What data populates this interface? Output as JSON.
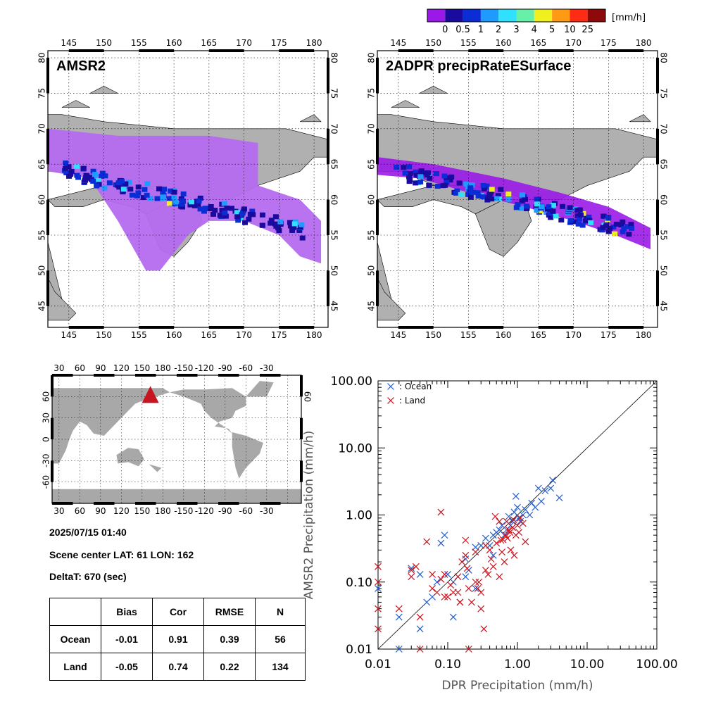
{
  "colorbar": {
    "unit": "[mm/h]",
    "labels": [
      "0",
      "0.5",
      "1",
      "2",
      "3",
      "4",
      "5",
      "10",
      "25"
    ],
    "colors": [
      "#9b19e8",
      "#1a0a9e",
      "#0a2dd6",
      "#1f9bff",
      "#2fe0ff",
      "#66f0a8",
      "#f0f01e",
      "#ff9a14",
      "#ff2b14",
      "#8e0a0a"
    ]
  },
  "maps": {
    "lon_ticks": [
      "145",
      "150",
      "155",
      "160",
      "165",
      "170",
      "175",
      "180"
    ],
    "lat_ticks": [
      "45",
      "50",
      "55",
      "60",
      "65",
      "70",
      "75",
      "80"
    ],
    "left_title": "AMSR2",
    "right_title": "2ADPR precipRateESurface",
    "land_color": "#b0b0b0",
    "ocean_color": "#ffffff",
    "light_rain_color": "#b56cf0"
  },
  "world_map": {
    "lon_ticks": [
      "30",
      "60",
      "90",
      "120",
      "150",
      "180",
      "-150",
      "-120",
      "-90",
      "-60",
      "-30"
    ],
    "lat_ticks": [
      "60",
      "30",
      "0",
      "-30",
      "-60"
    ],
    "right_lat_ticks": [
      "60"
    ],
    "marker_color": "#c8141e"
  },
  "info": {
    "datetime": "2025/07/15 01:40",
    "scene_center": "Scene center LAT: 61   LON: 162",
    "delta_t": "DeltaT:  670 (sec)"
  },
  "stats_table": {
    "headers": [
      "",
      "Bias",
      "Cor",
      "RMSE",
      "N"
    ],
    "rows": [
      [
        "Ocean",
        "-0.01",
        "0.91",
        "0.39",
        "56"
      ],
      [
        "Land",
        "-0.05",
        "0.74",
        "0.22",
        "134"
      ]
    ]
  },
  "chart_data": {
    "type": "scatter",
    "xlabel": "DPR Precipitation (mm/h)",
    "ylabel": "AMSR2 Precipitation (mm/h)",
    "x_scale": "log",
    "y_scale": "log",
    "xlim": [
      0.01,
      100
    ],
    "ylim": [
      0.01,
      100
    ],
    "x_ticks": [
      "0.01",
      "0.10",
      "1.00",
      "10.00",
      "100.00"
    ],
    "y_ticks": [
      "0.01",
      "0.10",
      "1.00",
      "10.00",
      "100.00"
    ],
    "one_to_one_line": true,
    "legend_position": "top-left",
    "series": [
      {
        "name": ": Ocean",
        "color": "#1f5fd6",
        "marker": "x",
        "points": [
          [
            0.01,
            0.08
          ],
          [
            0.02,
            0.03
          ],
          [
            0.03,
            0.16
          ],
          [
            0.04,
            0.13
          ],
          [
            0.05,
            0.05
          ],
          [
            0.06,
            0.06
          ],
          [
            0.07,
            0.1
          ],
          [
            0.08,
            0.38
          ],
          [
            0.09,
            0.5
          ],
          [
            0.1,
            0.13
          ],
          [
            0.12,
            0.03
          ],
          [
            0.15,
            0.05
          ],
          [
            0.18,
            0.22
          ],
          [
            0.2,
            0.15
          ],
          [
            0.25,
            0.33
          ],
          [
            0.3,
            0.35
          ],
          [
            0.35,
            0.45
          ],
          [
            0.4,
            0.35
          ],
          [
            0.45,
            0.5
          ],
          [
            0.5,
            0.55
          ],
          [
            0.55,
            0.6
          ],
          [
            0.6,
            0.7
          ],
          [
            0.7,
            0.6
          ],
          [
            0.75,
            0.95
          ],
          [
            0.8,
            0.7
          ],
          [
            0.9,
            1.1
          ],
          [
            0.95,
            1.9
          ],
          [
            1.0,
            1.3
          ],
          [
            1.1,
            0.8
          ],
          [
            1.2,
            1.0
          ],
          [
            1.3,
            1.2
          ],
          [
            1.5,
            1.0
          ],
          [
            1.6,
            1.5
          ],
          [
            1.8,
            1.3
          ],
          [
            2.0,
            2.5
          ],
          [
            2.5,
            2.3
          ],
          [
            3.0,
            2.5
          ],
          [
            3.2,
            3.3
          ],
          [
            4.0,
            1.8
          ],
          [
            0.02,
            0.01
          ],
          [
            0.04,
            0.02
          ],
          [
            0.25,
            0.08
          ],
          [
            0.65,
            0.5
          ],
          [
            0.85,
            0.8
          ],
          [
            1.05,
            0.9
          ],
          [
            2.2,
            1.6
          ],
          [
            0.12,
            0.1
          ],
          [
            0.18,
            0.12
          ],
          [
            0.45,
            0.25
          ]
        ]
      },
      {
        "name": ": Land",
        "color": "#c8141e",
        "marker": "x",
        "points": [
          [
            0.01,
            0.17
          ],
          [
            0.01,
            0.1
          ],
          [
            0.01,
            0.04
          ],
          [
            0.01,
            0.02
          ],
          [
            0.02,
            0.04
          ],
          [
            0.03,
            0.12
          ],
          [
            0.03,
            0.15
          ],
          [
            0.04,
            0.03
          ],
          [
            0.04,
            0.01
          ],
          [
            0.05,
            0.4
          ],
          [
            0.06,
            0.08
          ],
          [
            0.07,
            0.07
          ],
          [
            0.08,
            0.11
          ],
          [
            0.08,
            1.1
          ],
          [
            0.09,
            0.06
          ],
          [
            0.1,
            0.06
          ],
          [
            0.12,
            0.07
          ],
          [
            0.14,
            0.12
          ],
          [
            0.15,
            0.05
          ],
          [
            0.16,
            0.2
          ],
          [
            0.18,
            0.42
          ],
          [
            0.18,
            0.25
          ],
          [
            0.2,
            0.08
          ],
          [
            0.2,
            0.01
          ],
          [
            0.22,
            0.05
          ],
          [
            0.25,
            0.1
          ],
          [
            0.27,
            0.08
          ],
          [
            0.28,
            0.1
          ],
          [
            0.3,
            0.07
          ],
          [
            0.3,
            0.04
          ],
          [
            0.33,
            0.02
          ],
          [
            0.35,
            0.15
          ],
          [
            0.38,
            0.13
          ],
          [
            0.4,
            0.3
          ],
          [
            0.42,
            0.22
          ],
          [
            0.45,
            0.17
          ],
          [
            0.5,
            0.38
          ],
          [
            0.55,
            0.12
          ],
          [
            0.6,
            0.28
          ],
          [
            0.62,
            0.43
          ],
          [
            0.65,
            0.2
          ],
          [
            0.7,
            0.8
          ],
          [
            0.72,
            0.45
          ],
          [
            0.75,
            0.6
          ],
          [
            0.8,
            0.3
          ],
          [
            0.85,
            0.65
          ],
          [
            0.9,
            0.25
          ],
          [
            0.95,
            0.5
          ],
          [
            1.0,
            0.7
          ],
          [
            1.05,
            0.55
          ],
          [
            1.1,
            0.9
          ],
          [
            1.2,
            0.75
          ],
          [
            1.3,
            0.4
          ],
          [
            0.48,
            0.95
          ],
          [
            0.58,
            0.42
          ],
          [
            0.68,
            0.5
          ],
          [
            0.35,
            0.35
          ],
          [
            0.25,
            0.28
          ],
          [
            0.19,
            0.16
          ],
          [
            0.14,
            0.07
          ],
          [
            0.11,
            0.09
          ],
          [
            0.09,
            0.13
          ],
          [
            0.06,
            0.13
          ],
          [
            0.035,
            0.17
          ],
          [
            0.55,
            0.8
          ],
          [
            0.78,
            0.55
          ],
          [
            0.88,
            0.85
          ]
        ]
      }
    ]
  }
}
